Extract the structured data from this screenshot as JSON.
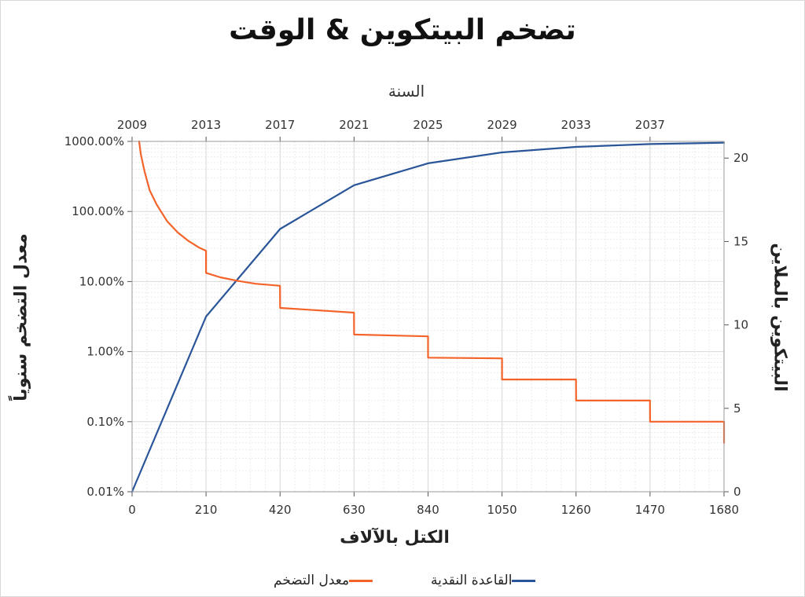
{
  "chart_data": {
    "type": "line",
    "title": "تضخم البيتكوين & الوقت",
    "xlabel": "الكتل بالآلاف",
    "x2label": "السنة",
    "ylabel_left": "معدل التضخم سنوياً",
    "ylabel_right": "البيتكوين بالملاين",
    "x_ticks": [
      "0",
      "210",
      "420",
      "630",
      "840",
      "1050",
      "1260",
      "1470",
      "1680"
    ],
    "x_tick_values": [
      0,
      210,
      420,
      630,
      840,
      1050,
      1260,
      1470,
      1680
    ],
    "x2_ticks": [
      "2009",
      "2013",
      "2017",
      "2021",
      "2025",
      "2029",
      "2033",
      "2037"
    ],
    "y_left_ticks": [
      "0.01%",
      "0.10%",
      "1.00%",
      "10.00%",
      "100.00%",
      "1000.00%"
    ],
    "y_left_tick_values": [
      0.01,
      0.1,
      1,
      10,
      100,
      1000
    ],
    "y_left_scale": "log",
    "y_right_ticks": [
      "0",
      "5",
      "10",
      "15",
      "20"
    ],
    "y_right_tick_values": [
      0,
      5,
      10,
      15,
      20
    ],
    "xlim": [
      0,
      1680
    ],
    "ylim_left": [
      0.01,
      1000
    ],
    "ylim_right": [
      0,
      21
    ],
    "grid": true,
    "legend_position": "bottom",
    "series": [
      {
        "name": "القاعدة النقدية",
        "axis": "right",
        "color": "#2a5699",
        "x": [
          0,
          210,
          420,
          630,
          840,
          1050,
          1260,
          1470,
          1680
        ],
        "values": [
          0,
          10.5,
          15.75,
          18.375,
          19.6875,
          20.34,
          20.67,
          20.84,
          20.92
        ]
      },
      {
        "name": "معدل التضخم",
        "axis": "left",
        "color": "#f4632a",
        "x": [
          20,
          25,
          35,
          50,
          70,
          100,
          130,
          160,
          190,
          209.9,
          210,
          250,
          300,
          350,
          419.9,
          420,
          629.9,
          630,
          839.9,
          840,
          1049.9,
          1050,
          1259.9,
          1260,
          1469.9,
          1470,
          1679.9,
          1680
        ],
        "values": [
          1000,
          650,
          380,
          200,
          125,
          72,
          50,
          38,
          30.5,
          27.5,
          13.3,
          11.5,
          10.2,
          9.3,
          8.7,
          4.2,
          3.6,
          1.75,
          1.65,
          0.82,
          0.8,
          0.4,
          0.4,
          0.2,
          0.2,
          0.1,
          0.1,
          0.05
        ]
      }
    ]
  }
}
